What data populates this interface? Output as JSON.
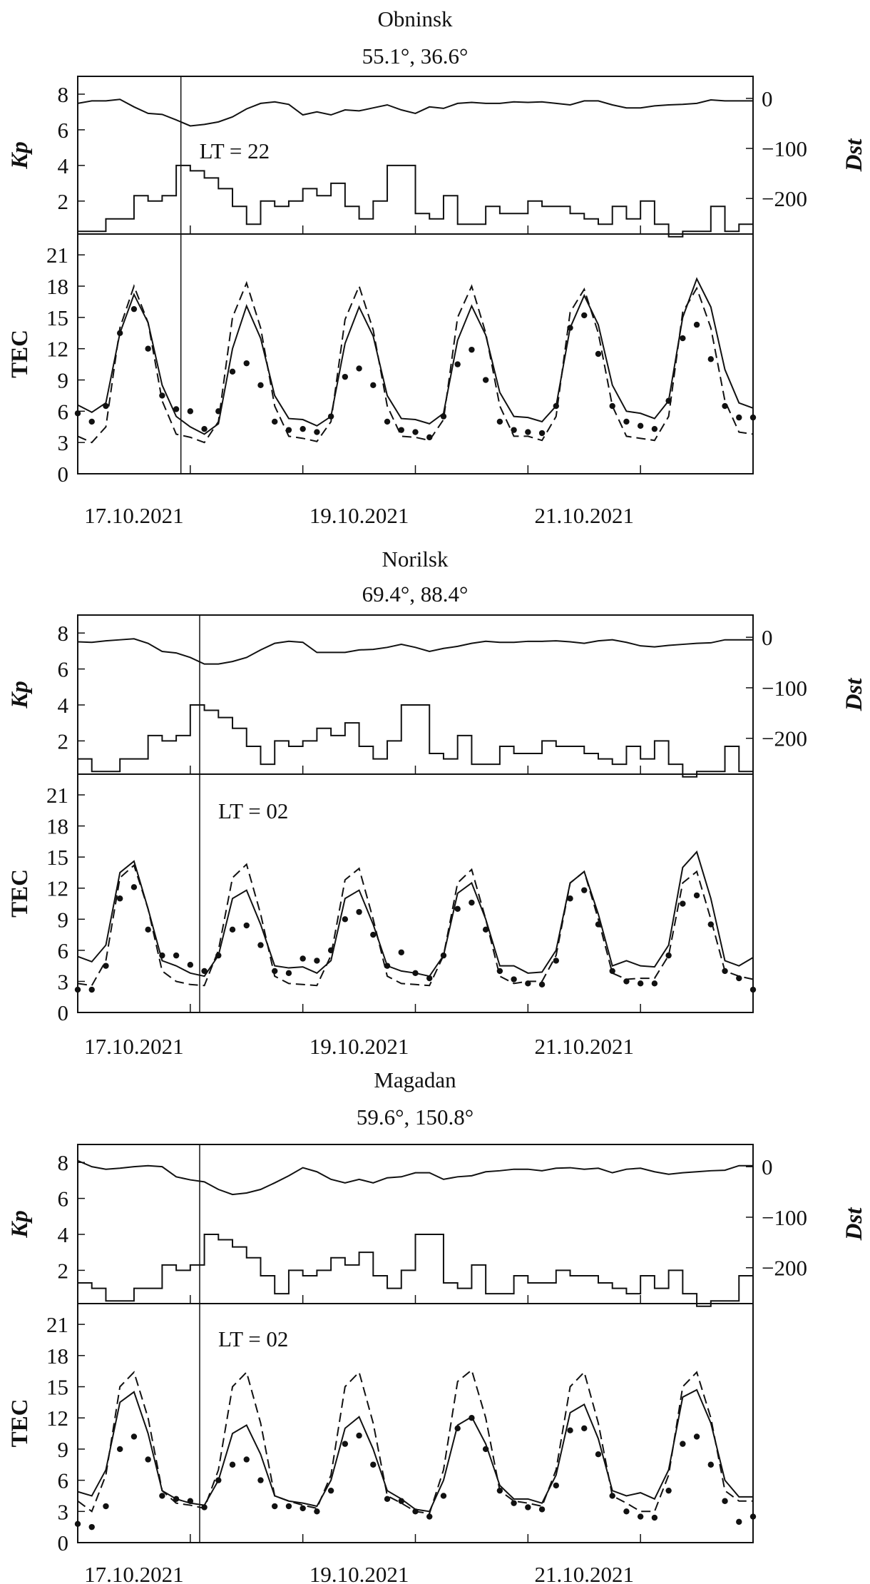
{
  "chart_data": [
    {
      "type": "line",
      "title": "Obninsk",
      "subtitle": "55.1°, 36.6°",
      "annotation": "LT = 22",
      "marker_time": "2021-10-17 22:00",
      "x_start": "2021-10-17 00:00",
      "x_end": "2021-10-23 00:00",
      "sampling_interval_hours": 3,
      "x_tick_labels": [
        "17.10.2021",
        "19.10.2021",
        "21.10.2021"
      ],
      "upper": {
        "left_label": "Kp",
        "right_label": "Dst",
        "kp_ticks": [
          2,
          4,
          6,
          8
        ],
        "dst_ticks": [
          0,
          -100,
          -200
        ],
        "kp_ylim": [
          0.15,
          9
        ],
        "dst_ylim": [
          -271,
          44
        ],
        "kp": [
          0.3,
          0.3,
          1.0,
          1.0,
          2.3,
          2.0,
          2.3,
          4.0,
          3.7,
          3.3,
          2.7,
          1.7,
          0.7,
          2.0,
          1.7,
          2.0,
          2.7,
          2.3,
          3.0,
          1.7,
          1.0,
          2.0,
          4.0,
          4.0,
          1.3,
          1.0,
          2.3,
          0.7,
          0.7,
          1.7,
          1.3,
          1.3,
          2.0,
          1.7,
          1.7,
          1.3,
          1.0,
          0.7,
          1.7,
          1.0,
          2.0,
          0.7,
          0.0,
          0.3,
          0.3,
          1.7,
          0.3,
          0.7
        ],
        "dst": [
          -10,
          -5,
          -5,
          -2,
          -17,
          -30,
          -32,
          -43,
          -55,
          -52,
          -47,
          -37,
          -21,
          -10,
          -7,
          -12,
          -33,
          -27,
          -33,
          -23,
          -25,
          -19,
          -13,
          -23,
          -30,
          -17,
          -20,
          -10,
          -8,
          -10,
          -10,
          -7,
          -8,
          -7,
          -10,
          -13,
          -5,
          -5,
          -13,
          -19,
          -19,
          -15,
          -13,
          -12,
          -10,
          -3,
          -5,
          -5,
          -5
        ]
      },
      "lower": {
        "ylabel": "TEC",
        "y_ticks": [
          0,
          3,
          6,
          9,
          12,
          15,
          18,
          21
        ],
        "ylim": [
          0,
          23
        ],
        "series": [
          {
            "style": "dots",
            "values": [
              5.8,
              5.0,
              6.5,
              13.5,
              15.8,
              12.0,
              7.5,
              6.2,
              6.0,
              4.3,
              6.0,
              9.8,
              10.6,
              8.5,
              5.0,
              4.2,
              4.3,
              4.0,
              5.5,
              9.3,
              10.1,
              8.5,
              5.0,
              4.2,
              4.0,
              3.5,
              5.5,
              10.5,
              11.9,
              9.0,
              5.0,
              4.2,
              4.0,
              3.9,
              6.5,
              14.0,
              15.2,
              11.5,
              6.5,
              5.0,
              4.6,
              4.3,
              7.0,
              13.0,
              14.3,
              11.0,
              6.5,
              5.4,
              5.4
            ]
          },
          {
            "style": "solid",
            "values": [
              6.6,
              5.9,
              6.8,
              13.5,
              17.2,
              14.5,
              8.5,
              5.5,
              4.5,
              3.8,
              4.8,
              12.0,
              16.1,
              13.0,
              7.5,
              5.3,
              5.2,
              4.6,
              5.5,
              12.5,
              16.0,
              13.2,
              7.5,
              5.3,
              5.2,
              4.8,
              5.8,
              12.8,
              16.1,
              13.3,
              7.8,
              5.5,
              5.4,
              5.0,
              6.5,
              14.0,
              17.1,
              14.3,
              8.5,
              6.0,
              5.8,
              5.3,
              7.0,
              15.0,
              18.7,
              16.0,
              10.0,
              6.8,
              6.3
            ]
          },
          {
            "style": "dashed",
            "values": [
              3.6,
              3.0,
              4.5,
              14.0,
              18.0,
              14.5,
              7.0,
              3.8,
              3.5,
              3.0,
              5.0,
              15.0,
              18.3,
              14.0,
              6.5,
              3.6,
              3.4,
              3.1,
              5.0,
              14.8,
              18.0,
              13.8,
              6.5,
              3.6,
              3.5,
              3.2,
              5.2,
              15.0,
              18.0,
              13.5,
              6.5,
              3.6,
              3.6,
              3.2,
              5.5,
              15.5,
              17.7,
              13.5,
              6.5,
              3.6,
              3.4,
              3.2,
              5.5,
              15.5,
              17.8,
              14.0,
              7.0,
              4.0,
              3.8
            ]
          }
        ]
      }
    },
    {
      "type": "line",
      "title": "Norilsk",
      "subtitle": "69.4°, 88.4°",
      "annotation": "LT = 02",
      "marker_time": "2021-10-18 02:00",
      "x_start": "2021-10-17 00:00",
      "x_end": "2021-10-23 00:00",
      "sampling_interval_hours": 3,
      "x_tick_labels": [
        "17.10.2021",
        "19.10.2021",
        "21.10.2021"
      ],
      "upper": {
        "left_label": "Kp",
        "right_label": "Dst",
        "kp_ticks": [
          2,
          4,
          6,
          8
        ],
        "dst_ticks": [
          0,
          -100,
          -200
        ],
        "kp_ylim": [
          0.15,
          9
        ],
        "dst_ylim": [
          -271,
          44
        ],
        "kp": [
          1.0,
          0.3,
          0.3,
          1.0,
          1.0,
          2.3,
          2.0,
          2.3,
          4.0,
          3.7,
          3.3,
          2.7,
          1.7,
          0.7,
          2.0,
          1.7,
          2.0,
          2.7,
          2.3,
          3.0,
          1.7,
          1.0,
          2.0,
          4.0,
          4.0,
          1.3,
          1.0,
          2.3,
          0.7,
          0.7,
          1.7,
          1.3,
          1.3,
          2.0,
          1.7,
          1.7,
          1.3,
          1.0,
          0.7,
          1.7,
          1.0,
          2.0,
          0.7,
          0.0,
          0.3,
          0.3,
          1.7,
          0.3
        ],
        "dst": [
          -9,
          -10,
          -7,
          -5,
          -3,
          -12,
          -28,
          -31,
          -40,
          -53,
          -53,
          -48,
          -40,
          -25,
          -12,
          -8,
          -10,
          -30,
          -30,
          -30,
          -25,
          -24,
          -20,
          -14,
          -20,
          -28,
          -22,
          -18,
          -12,
          -8,
          -10,
          -10,
          -8,
          -8,
          -7,
          -9,
          -12,
          -7,
          -5,
          -10,
          -17,
          -19,
          -16,
          -14,
          -12,
          -11,
          -5,
          -5,
          -5
        ]
      },
      "lower": {
        "ylabel": "TEC",
        "y_ticks": [
          0,
          3,
          6,
          9,
          12,
          15,
          18,
          21
        ],
        "ylim": [
          0,
          23
        ],
        "series": [
          {
            "style": "dots",
            "values": [
              2.2,
              2.2,
              4.5,
              11.0,
              12.1,
              8.0,
              5.5,
              5.5,
              4.6,
              4.0,
              5.5,
              8.0,
              8.4,
              6.5,
              4.0,
              3.8,
              5.2,
              5.0,
              6.0,
              9.0,
              9.7,
              7.5,
              4.5,
              5.8,
              3.8,
              3.3,
              5.5,
              10.0,
              10.6,
              8.0,
              4.0,
              3.2,
              2.8,
              2.7,
              5.0,
              11.0,
              11.8,
              8.5,
              4.0,
              3.0,
              2.8,
              2.8,
              5.5,
              10.5,
              11.3,
              8.5,
              4.0,
              3.3,
              2.2
            ]
          },
          {
            "style": "solid",
            "values": [
              5.4,
              4.9,
              6.5,
              13.5,
              14.6,
              10.0,
              5.0,
              4.5,
              3.8,
              3.5,
              5.5,
              11.0,
              11.8,
              8.5,
              4.5,
              4.3,
              4.4,
              3.8,
              5.0,
              11.0,
              11.8,
              8.5,
              4.5,
              4.0,
              3.8,
              3.5,
              5.5,
              11.5,
              12.5,
              9.0,
              4.5,
              4.5,
              3.8,
              3.9,
              6.0,
              12.5,
              13.6,
              9.5,
              4.5,
              5.0,
              4.5,
              4.4,
              6.5,
              14.0,
              15.5,
              11.0,
              5.0,
              4.5,
              5.3
            ]
          },
          {
            "style": "dashed",
            "values": [
              2.8,
              2.6,
              5.0,
              13.0,
              14.2,
              10.0,
              4.0,
              3.0,
              2.7,
              2.6,
              6.0,
              13.0,
              14.3,
              9.5,
              3.5,
              2.8,
              2.7,
              2.6,
              5.5,
              12.8,
              13.9,
              9.0,
              3.5,
              2.8,
              2.7,
              2.6,
              5.5,
              12.5,
              13.8,
              9.0,
              3.5,
              2.8,
              3.0,
              3.0,
              5.5,
              12.5,
              13.6,
              9.0,
              3.8,
              3.2,
              3.3,
              3.3,
              5.5,
              12.5,
              13.6,
              9.0,
              4.0,
              3.5,
              3.2
            ]
          }
        ]
      }
    },
    {
      "type": "line",
      "title": "Magadan",
      "subtitle": "59.6°, 150.8°",
      "annotation": "LT = 02",
      "marker_time": "2021-10-18 02:00",
      "x_start": "2021-10-17 00:00",
      "x_end": "2021-10-23 00:00",
      "sampling_interval_hours": 3,
      "x_tick_labels": [
        "17.10.2021",
        "19.10.2021",
        "21.10.2021"
      ],
      "upper": {
        "left_label": "Kp",
        "right_label": "Dst",
        "kp_ticks": [
          2,
          4,
          6,
          8
        ],
        "dst_ticks": [
          0,
          -100,
          -200
        ],
        "kp_ylim": [
          0.15,
          9
        ],
        "dst_ylim": [
          -271,
          44
        ],
        "kp": [
          1.3,
          1.0,
          0.3,
          0.3,
          1.0,
          1.0,
          2.3,
          2.0,
          2.3,
          4.0,
          3.7,
          3.3,
          2.7,
          1.7,
          0.7,
          2.0,
          1.7,
          2.0,
          2.7,
          2.3,
          3.0,
          1.7,
          1.0,
          2.0,
          4.0,
          4.0,
          1.3,
          1.0,
          2.3,
          0.7,
          0.7,
          1.7,
          1.3,
          1.3,
          2.0,
          1.7,
          1.7,
          1.3,
          1.0,
          0.7,
          1.7,
          1.0,
          2.0,
          0.7,
          0.0,
          0.3,
          0.3,
          1.7
        ],
        "dst": [
          12,
          0,
          -5,
          -3,
          0,
          2,
          0,
          -20,
          -26,
          -30,
          -45,
          -55,
          -52,
          -45,
          -32,
          -18,
          -2,
          -10,
          -25,
          -32,
          -25,
          -32,
          -22,
          -20,
          -12,
          -12,
          -25,
          -20,
          -18,
          -10,
          -8,
          -5,
          -5,
          -8,
          -3,
          -2,
          -5,
          -3,
          -12,
          -5,
          -3,
          -10,
          -15,
          -12,
          -10,
          -8,
          -7,
          2,
          2
        ]
      },
      "lower": {
        "ylabel": "TEC",
        "y_ticks": [
          0,
          3,
          6,
          9,
          12,
          15,
          18,
          21
        ],
        "ylim": [
          0,
          23
        ],
        "series": [
          {
            "style": "dots",
            "values": [
              1.8,
              1.5,
              3.5,
              9.0,
              10.2,
              8.0,
              4.5,
              4.2,
              4.0,
              3.4,
              6.0,
              7.5,
              8.0,
              6.0,
              3.5,
              3.5,
              3.3,
              3.0,
              5.0,
              9.5,
              10.3,
              7.5,
              4.2,
              4.0,
              3.0,
              2.5,
              4.5,
              11.0,
              12.0,
              9.0,
              5.0,
              3.8,
              3.4,
              3.2,
              5.5,
              10.8,
              11.0,
              8.5,
              4.5,
              3.0,
              2.5,
              2.4,
              5.0,
              9.5,
              10.2,
              7.5,
              4.0,
              2.0,
              2.5
            ]
          },
          {
            "style": "solid",
            "values": [
              4.9,
              4.5,
              7.0,
              13.5,
              14.5,
              10.5,
              5.0,
              4.2,
              3.8,
              3.6,
              6.0,
              10.5,
              11.3,
              8.5,
              4.5,
              4.0,
              3.8,
              3.5,
              6.0,
              11.0,
              12.1,
              9.0,
              5.0,
              4.2,
              3.2,
              3.0,
              6.0,
              11.3,
              12.1,
              9.5,
              5.5,
              4.2,
              4.2,
              3.8,
              6.5,
              12.5,
              13.3,
              10.0,
              5.0,
              4.5,
              4.8,
              4.2,
              7.0,
              14.0,
              14.7,
              11.5,
              6.0,
              4.4,
              4.4
            ]
          },
          {
            "style": "dashed",
            "values": [
              4.0,
              3.0,
              6.5,
              15.0,
              16.4,
              12.0,
              5.0,
              3.8,
              3.6,
              3.3,
              7.0,
              15.0,
              16.4,
              11.5,
              4.5,
              4.0,
              3.6,
              3.3,
              6.5,
              15.0,
              16.4,
              11.5,
              4.5,
              3.8,
              3.0,
              2.8,
              7.0,
              15.5,
              16.6,
              12.0,
              5.0,
              4.0,
              3.8,
              3.5,
              7.0,
              15.0,
              16.4,
              11.5,
              4.5,
              3.8,
              3.0,
              3.0,
              6.5,
              15.0,
              16.4,
              12.0,
              5.0,
              4.0,
              4.0
            ]
          }
        ]
      }
    }
  ],
  "colors": {
    "ink": "#111111",
    "background": "#ffffff"
  }
}
